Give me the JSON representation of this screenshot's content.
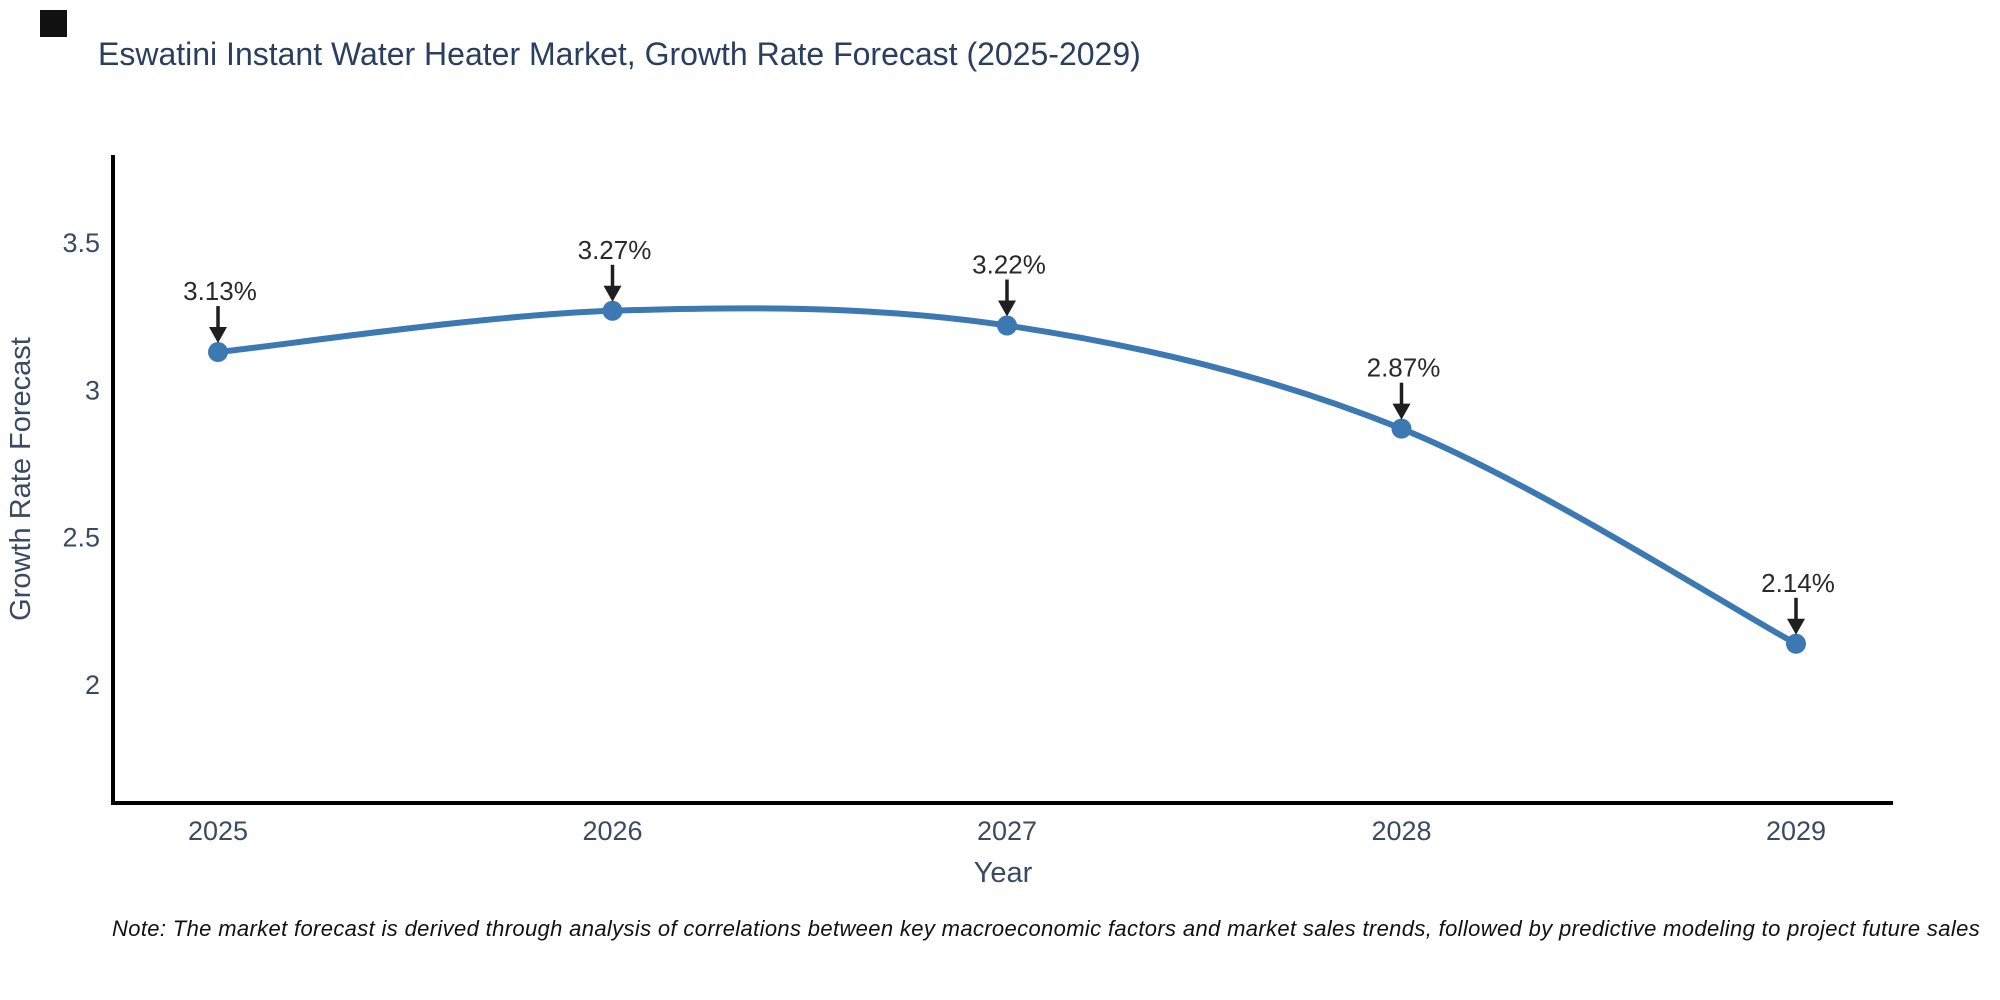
{
  "page": {
    "title": "Eswatini Instant Water Heater Market, Growth Rate Forecast (2025-2029)",
    "note": "Note: The market forecast is derived through analysis of correlations between key macroeconomic factors and market sales trends, followed by predictive modeling to project future sales"
  },
  "chart_data": {
    "type": "line",
    "title": "Eswatini Instant Water Heater Market, Growth Rate Forecast (2025-2029)",
    "xlabel": "Year",
    "ylabel": "Growth Rate Forecast",
    "line_shape": "spline",
    "grid": false,
    "legend": "none",
    "x": [
      2025,
      2026,
      2027,
      2028,
      2029
    ],
    "y": [
      3.13,
      3.27,
      3.22,
      2.87,
      2.14
    ],
    "point_labels": [
      "3.13%",
      "3.27%",
      "3.22%",
      "2.87%",
      "2.14%"
    ],
    "x_tick_labels": [
      "2025",
      "2026",
      "2027",
      "2028",
      "2029"
    ],
    "y_ticks": [
      3.5,
      3,
      2.5,
      2
    ],
    "y_tick_labels": [
      "3.5",
      "3",
      "2.5",
      "2"
    ],
    "xlim": [
      2024.73,
      2029.25
    ],
    "ylim": [
      1.6,
      3.8
    ],
    "colors": {
      "line": "#3c79b3",
      "marker": "#3c79b3",
      "annotation": "#1f1f1f",
      "title": "#2a3f5f",
      "ticks": "#3b4a63",
      "axis_line": "#000000",
      "note": "#111111"
    }
  }
}
